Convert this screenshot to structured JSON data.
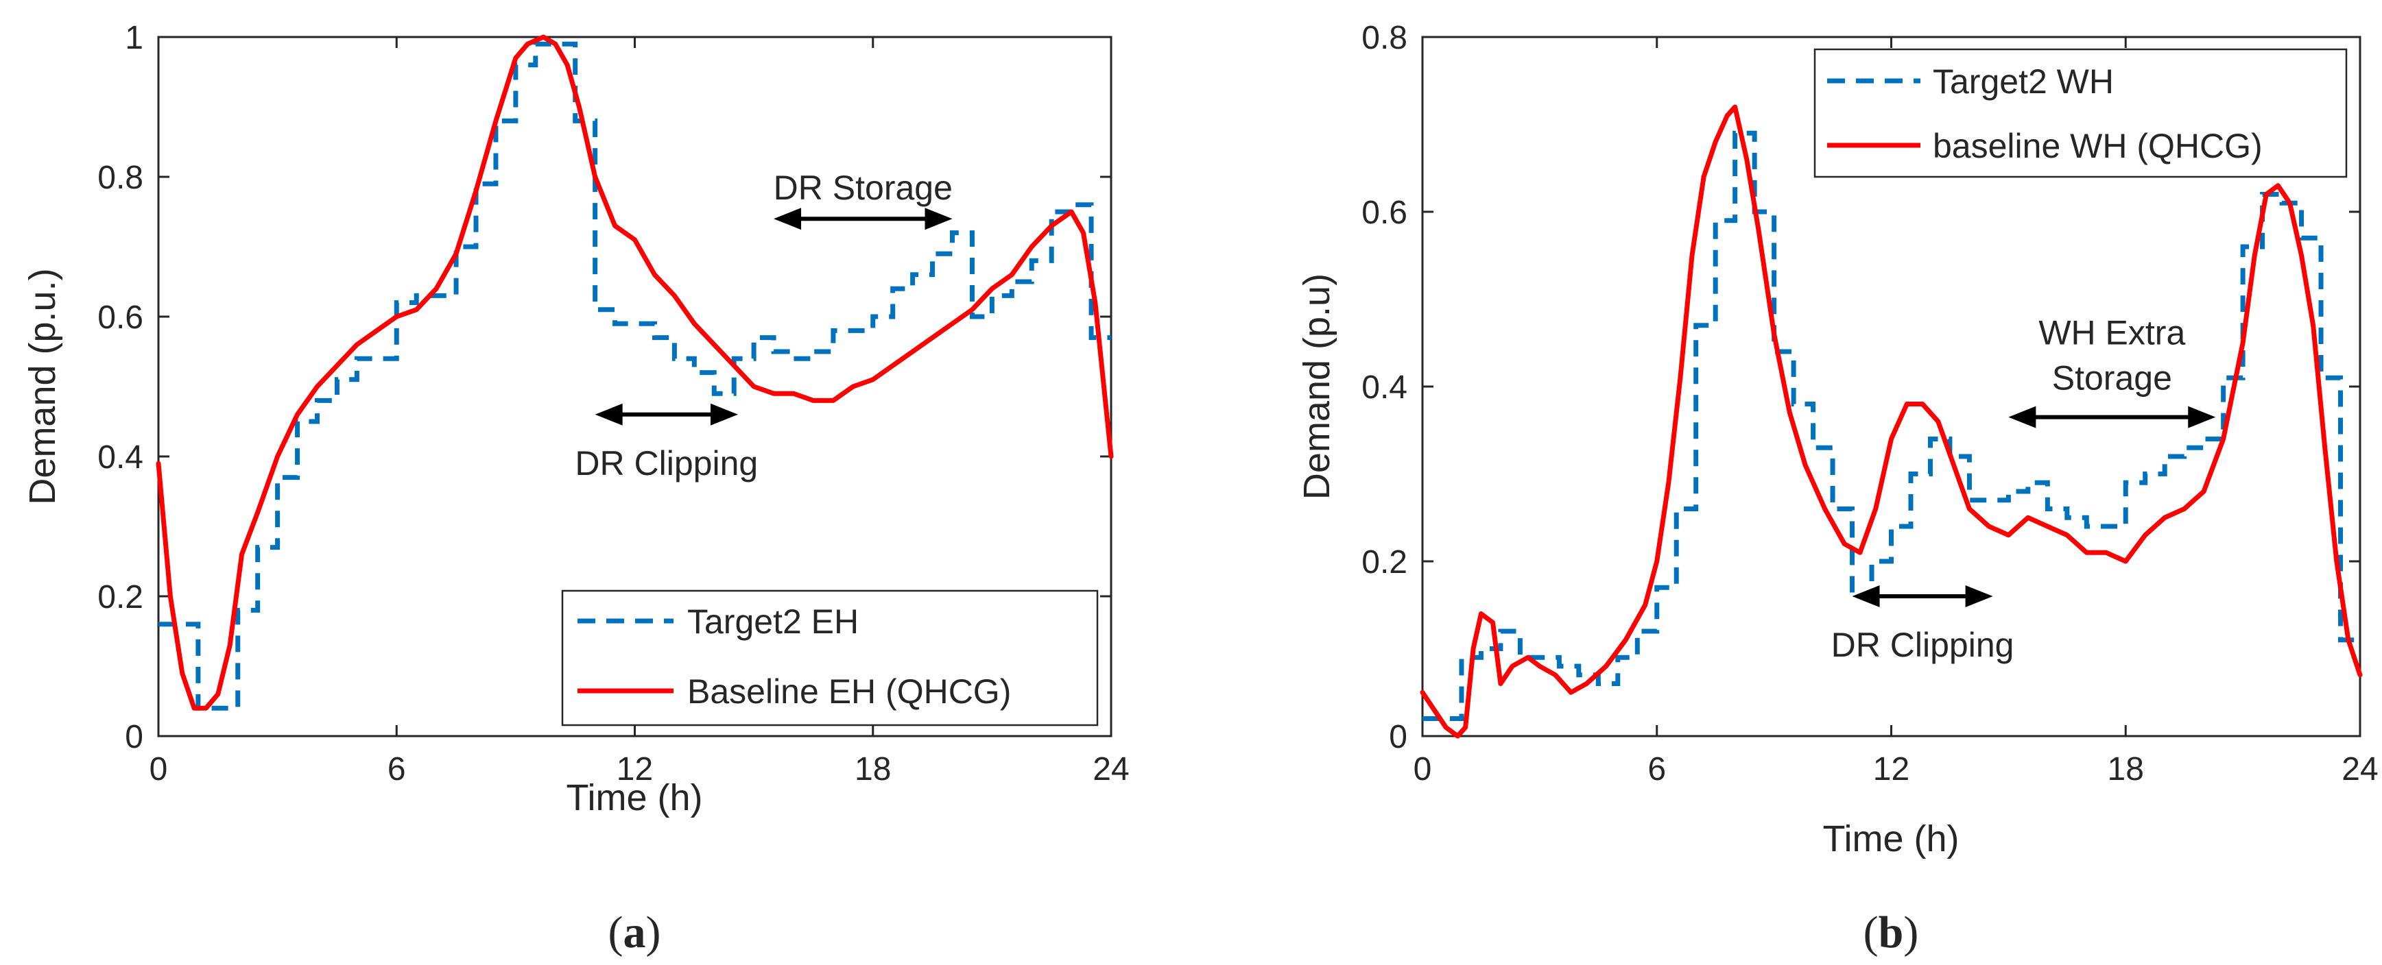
{
  "colors": {
    "target": "#0072BD",
    "baseline": "#FF0000",
    "arrow": "#000000"
  },
  "chart_data": [
    {
      "type": "line",
      "panel_label": "a",
      "xlabel": "Time (h)",
      "ylabel": "Demand (p.u.)",
      "xlim": [
        0,
        24
      ],
      "ylim": [
        0,
        1
      ],
      "xticks": [
        0,
        6,
        12,
        18,
        24
      ],
      "xtick_labels": [
        "0",
        "6",
        "12",
        "18",
        "24"
      ],
      "yticks": [
        0,
        0.2,
        0.4,
        0.6,
        0.8,
        1
      ],
      "ytick_labels": [
        "0",
        "0.2",
        "0.4",
        "0.6",
        "0.8",
        "1"
      ],
      "legend_position": "bottom-right",
      "series": [
        {
          "name": "Target2 EH",
          "style": "dashed-step",
          "color": "#0072BD",
          "x": [
            0,
            0.5,
            1,
            1.5,
            2,
            2.5,
            3,
            3.5,
            4,
            4.5,
            5,
            5.5,
            6,
            6.5,
            7,
            7.5,
            8,
            8.5,
            9,
            9.5,
            10,
            10.5,
            11,
            11.5,
            12,
            12.5,
            13,
            13.5,
            14,
            14.5,
            15,
            15.5,
            16,
            16.5,
            17,
            17.5,
            18,
            18.5,
            19,
            19.5,
            20,
            20.5,
            21,
            21.5,
            22,
            22.5,
            23,
            23.5,
            24
          ],
          "y": [
            0.16,
            0.16,
            0.04,
            0.04,
            0.18,
            0.27,
            0.37,
            0.45,
            0.48,
            0.51,
            0.54,
            0.54,
            0.62,
            0.63,
            0.63,
            0.7,
            0.79,
            0.88,
            0.96,
            0.99,
            0.99,
            0.88,
            0.61,
            0.59,
            0.59,
            0.57,
            0.54,
            0.52,
            0.49,
            0.54,
            0.57,
            0.55,
            0.54,
            0.55,
            0.58,
            0.58,
            0.6,
            0.64,
            0.66,
            0.69,
            0.72,
            0.6,
            0.63,
            0.65,
            0.68,
            0.75,
            0.76,
            0.57,
            0.57
          ]
        },
        {
          "name": "Baseline EH (QHCG)",
          "style": "solid",
          "color": "#FF0000",
          "x": [
            0,
            0.3,
            0.6,
            0.9,
            1.2,
            1.5,
            1.8,
            2.1,
            2.5,
            3,
            3.5,
            4,
            4.5,
            5,
            5.5,
            6,
            6.5,
            7,
            7.5,
            8,
            8.5,
            9,
            9.3,
            9.7,
            10,
            10.3,
            10.6,
            11,
            11.5,
            12,
            12.5,
            13,
            13.5,
            14,
            14.5,
            15,
            15.5,
            16,
            16.5,
            17,
            17.5,
            18,
            18.5,
            19,
            19.5,
            20,
            20.5,
            21,
            21.5,
            22,
            22.5,
            23,
            23.3,
            23.6,
            24
          ],
          "y": [
            0.39,
            0.2,
            0.09,
            0.04,
            0.04,
            0.06,
            0.13,
            0.26,
            0.32,
            0.4,
            0.46,
            0.5,
            0.53,
            0.56,
            0.58,
            0.6,
            0.61,
            0.64,
            0.69,
            0.78,
            0.88,
            0.97,
            0.99,
            1.0,
            0.99,
            0.96,
            0.9,
            0.8,
            0.73,
            0.71,
            0.66,
            0.63,
            0.59,
            0.56,
            0.53,
            0.5,
            0.49,
            0.49,
            0.48,
            0.48,
            0.5,
            0.51,
            0.53,
            0.55,
            0.57,
            0.59,
            0.61,
            0.64,
            0.66,
            0.7,
            0.73,
            0.75,
            0.72,
            0.62,
            0.4
          ]
        }
      ],
      "annotations": [
        {
          "text": "DR Storage",
          "x_from": 15.5,
          "x_to": 20,
          "y": 0.74
        },
        {
          "text": "DR Clipping",
          "x_from": 11,
          "x_to": 14.6,
          "y": 0.46
        }
      ]
    },
    {
      "type": "line",
      "panel_label": "b",
      "xlabel": "Time (h)",
      "ylabel": "Demand (p.u)",
      "xlim": [
        0,
        24
      ],
      "ylim": [
        0,
        0.8
      ],
      "xticks": [
        0,
        6,
        12,
        18,
        24
      ],
      "xtick_labels": [
        "0",
        "6",
        "12",
        "18",
        "24"
      ],
      "yticks": [
        0,
        0.2,
        0.4,
        0.6,
        0.8
      ],
      "ytick_labels": [
        "0",
        "0.2",
        "0.4",
        "0.6",
        "0.8"
      ],
      "legend_position": "top-right",
      "series": [
        {
          "name": "Target2 WH",
          "style": "dashed-step",
          "color": "#0072BD",
          "x": [
            0,
            0.5,
            1,
            1.5,
            2,
            2.5,
            3,
            3.5,
            4,
            4.5,
            5,
            5.5,
            6,
            6.5,
            7,
            7.5,
            8,
            8.5,
            9,
            9.5,
            10,
            10.5,
            11,
            11.5,
            12,
            12.5,
            13,
            13.5,
            14,
            14.5,
            15,
            15.5,
            16,
            16.5,
            17,
            17.5,
            18,
            18.5,
            19,
            19.5,
            20,
            20.5,
            21,
            21.5,
            22,
            22.5,
            23,
            23.5,
            24
          ],
          "y": [
            0.02,
            0.02,
            0.09,
            0.1,
            0.12,
            0.09,
            0.09,
            0.08,
            0.07,
            0.06,
            0.09,
            0.12,
            0.17,
            0.26,
            0.47,
            0.59,
            0.69,
            0.6,
            0.44,
            0.38,
            0.33,
            0.26,
            0.16,
            0.2,
            0.24,
            0.3,
            0.34,
            0.32,
            0.27,
            0.27,
            0.28,
            0.29,
            0.26,
            0.25,
            0.24,
            0.24,
            0.29,
            0.3,
            0.32,
            0.33,
            0.34,
            0.41,
            0.56,
            0.62,
            0.61,
            0.57,
            0.41,
            0.11,
            0.11
          ]
        },
        {
          "name": "baseline WH (QHCG)",
          "style": "solid",
          "color": "#FF0000",
          "x": [
            0,
            0.3,
            0.6,
            0.9,
            1.1,
            1.3,
            1.5,
            1.8,
            2,
            2.3,
            2.7,
            3,
            3.4,
            3.8,
            4.2,
            4.7,
            5.2,
            5.7,
            6,
            6.3,
            6.6,
            6.9,
            7.2,
            7.5,
            7.8,
            8,
            8.3,
            8.6,
            9,
            9.4,
            9.8,
            10.3,
            10.8,
            11.2,
            11.6,
            12,
            12.4,
            12.8,
            13.2,
            13.6,
            14,
            14.5,
            15,
            15.5,
            16,
            16.5,
            17,
            17.5,
            18,
            18.5,
            19,
            19.5,
            20,
            20.5,
            21,
            21.3,
            21.6,
            21.9,
            22.2,
            22.5,
            22.8,
            23.1,
            23.4,
            23.7,
            24
          ],
          "y": [
            0.05,
            0.03,
            0.01,
            0.0,
            0.01,
            0.1,
            0.14,
            0.13,
            0.06,
            0.08,
            0.09,
            0.08,
            0.07,
            0.05,
            0.06,
            0.08,
            0.11,
            0.15,
            0.2,
            0.29,
            0.41,
            0.55,
            0.64,
            0.68,
            0.71,
            0.72,
            0.66,
            0.58,
            0.46,
            0.37,
            0.31,
            0.26,
            0.22,
            0.21,
            0.26,
            0.34,
            0.38,
            0.38,
            0.36,
            0.31,
            0.26,
            0.24,
            0.23,
            0.25,
            0.24,
            0.23,
            0.21,
            0.21,
            0.2,
            0.23,
            0.25,
            0.26,
            0.28,
            0.34,
            0.45,
            0.55,
            0.62,
            0.63,
            0.61,
            0.55,
            0.47,
            0.33,
            0.2,
            0.11,
            0.07
          ]
        }
      ],
      "annotations": [
        {
          "text": "WH Extra Storage",
          "lines": [
            "WH Extra",
            "Storage"
          ],
          "x_from": 15,
          "x_to": 20.3,
          "y": 0.365
        },
        {
          "text": "DR Clipping",
          "x_from": 11,
          "x_to": 14.6,
          "y": 0.16
        }
      ]
    }
  ]
}
